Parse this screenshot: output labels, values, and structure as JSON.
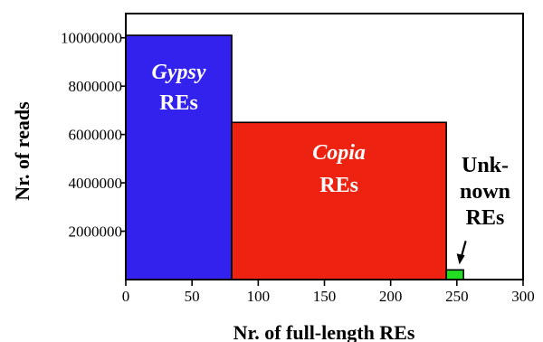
{
  "chart_data": {
    "type": "bar",
    "title": "",
    "xlabel": "Nr. of full-length REs",
    "ylabel": "Nr. of reads",
    "xlim": [
      0,
      300
    ],
    "ylim": [
      0,
      11000000
    ],
    "xticks": [
      0,
      50,
      100,
      150,
      200,
      250,
      300
    ],
    "xtick_labels": [
      "0",
      "50",
      "100",
      "150",
      "200",
      "250",
      "300"
    ],
    "yticks": [
      2000000,
      4000000,
      6000000,
      8000000,
      10000000
    ],
    "ytick_labels": [
      "2000000",
      "4000000",
      "6000000",
      "8000000",
      "10000000"
    ],
    "grid": false,
    "series": [
      {
        "key": "gypsy",
        "label_lines": [
          "Gypsy",
          "REs"
        ],
        "italic_first_line": true,
        "x_start": 0,
        "x_end": 80,
        "value": 10100000,
        "color": "#3322ee",
        "label_color": "#ffffff"
      },
      {
        "key": "copia",
        "label_lines": [
          "Copia",
          "REs"
        ],
        "italic_first_line": true,
        "x_start": 80,
        "x_end": 242,
        "value": 6500000,
        "color": "#ee2211",
        "label_color": "#ffffff"
      },
      {
        "key": "unknown",
        "label_lines": [
          "Unk-",
          "nown",
          "REs"
        ],
        "italic_first_line": false,
        "x_start": 242,
        "x_end": 255,
        "value": 400000,
        "color": "#22dd22",
        "label_color": "#000000"
      }
    ]
  }
}
